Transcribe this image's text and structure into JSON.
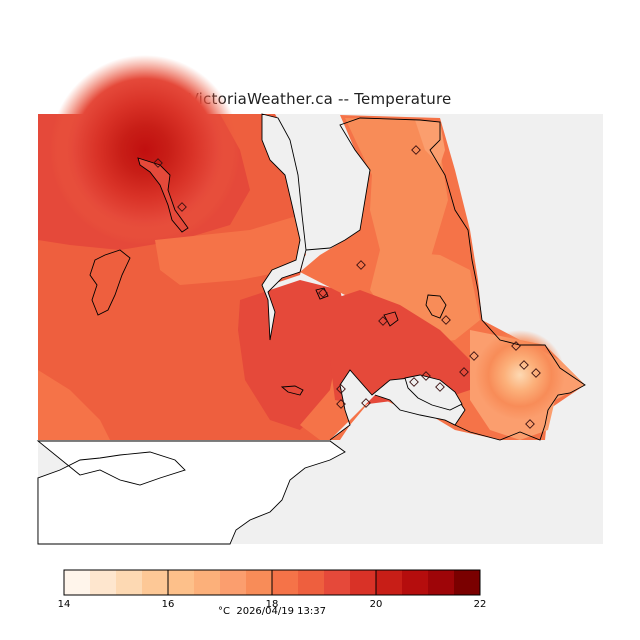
{
  "title": "VictoriaWeather.ca -- Temperature",
  "legend": {
    "colors": [
      "#fff5eb",
      "#fee6ce",
      "#fdd9b3",
      "#fdc896",
      "#fdc08a",
      "#fcb07a",
      "#fb9e6e",
      "#f88c58",
      "#f57348",
      "#ee5f3e",
      "#e5493a",
      "#d93227",
      "#c81e17",
      "#b50d0d",
      "#9e0508",
      "#7a0000"
    ],
    "ticks": [
      "14",
      "16",
      "18",
      "20",
      "22"
    ],
    "unit": "°C",
    "timestamp": "2026/04/19 13:37"
  },
  "colors": {
    "ocean": "#f0f0f0",
    "coastline": "#000000",
    "land_unmapped": "#ffffff"
  },
  "stations_count_label": ""
}
